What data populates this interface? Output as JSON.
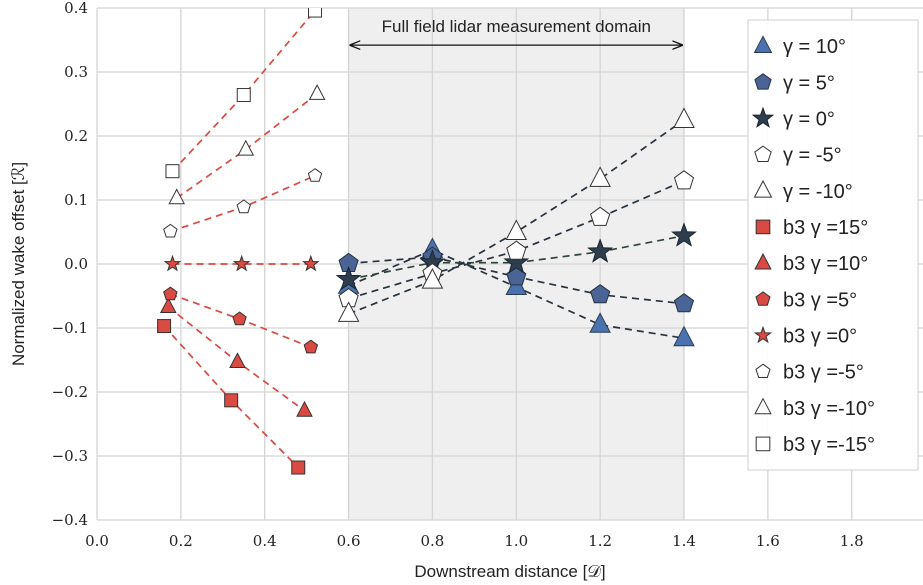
{
  "chart_data": {
    "type": "scatter",
    "xlabel": "Downstream distance [𝒟]",
    "ylabel": "Normalized wake offset [ℛ]",
    "xlim": [
      0.0,
      1.97
    ],
    "ylim": [
      -0.4,
      0.4
    ],
    "x_ticks": [
      {
        "value": 0.0,
        "label": "0.0"
      },
      {
        "value": 0.2,
        "label": "0.2"
      },
      {
        "value": 0.4,
        "label": "0.4"
      },
      {
        "value": 0.6,
        "label": "0.6"
      },
      {
        "value": 0.8,
        "label": "0.8"
      },
      {
        "value": 1.0,
        "label": "1.0"
      },
      {
        "value": 1.2,
        "label": "1.2"
      },
      {
        "value": 1.4,
        "label": "1.4"
      },
      {
        "value": 1.6,
        "label": "1.6"
      },
      {
        "value": 1.8,
        "label": "1.8"
      }
    ],
    "y_ticks": [
      {
        "value": 0.4,
        "label": "0.4"
      },
      {
        "value": 0.3,
        "label": "0.3"
      },
      {
        "value": 0.2,
        "label": "0.2"
      },
      {
        "value": 0.1,
        "label": "0.1"
      },
      {
        "value": 0.0,
        "label": "0.0"
      },
      {
        "value": -0.1,
        "label": "−0.1"
      },
      {
        "value": -0.2,
        "label": "−0.2"
      },
      {
        "value": -0.3,
        "label": "−0.3"
      },
      {
        "value": -0.4,
        "label": "−0.4"
      }
    ],
    "grid": true,
    "legend_position": "right",
    "shaded_region": {
      "x_start": 0.6,
      "x_end": 1.4,
      "color": "#efefef"
    },
    "annotation": {
      "text": "Full field lidar measurement domain",
      "arrow_from": 0.6,
      "arrow_to": 1.4,
      "arrow_y": 0.342,
      "text_y": 0.37
    },
    "series": [
      {
        "name": "γ = 10°",
        "marker": "triangle",
        "fill": "#4a72b0",
        "stroke": "#2c3e50",
        "size": 10,
        "line_color": "#26323f",
        "x": [
          0.6,
          0.8,
          1.0,
          1.2,
          1.4
        ],
        "y": [
          -0.034,
          0.022,
          -0.036,
          -0.095,
          -0.116
        ]
      },
      {
        "name": "γ = 5°",
        "marker": "pentagon",
        "fill": "#4a6496",
        "stroke": "#26323f",
        "size": 10,
        "line_color": "#26323f",
        "x": [
          0.6,
          0.8,
          1.0,
          1.2,
          1.4
        ],
        "y": [
          0.001,
          0.011,
          -0.02,
          -0.048,
          -0.062
        ]
      },
      {
        "name": "γ = 0°",
        "marker": "star",
        "fill": "#2e3e4f",
        "stroke": "#1a242e",
        "size": 11,
        "line_color": "#30453a",
        "x": [
          0.6,
          0.8,
          1.0,
          1.2,
          1.4
        ],
        "y": [
          -0.024,
          0.002,
          0.002,
          0.019,
          0.044
        ]
      },
      {
        "name": "γ = -5°",
        "marker": "pentagon",
        "fill": "#ffffff",
        "stroke": "#333333",
        "size": 10,
        "line_color": "#26323f",
        "x": [
          0.6,
          0.8,
          1.0,
          1.2,
          1.4
        ],
        "y": [
          -0.054,
          -0.015,
          0.02,
          0.073,
          0.13
        ]
      },
      {
        "name": "γ = -10°",
        "marker": "triangle",
        "fill": "#ffffff",
        "stroke": "#333333",
        "size": 10,
        "line_color": "#26323f",
        "x": [
          0.6,
          0.8,
          1.0,
          1.2,
          1.4
        ],
        "y": [
          -0.078,
          -0.026,
          0.05,
          0.133,
          0.225
        ]
      },
      {
        "name": "b3 γ =15°",
        "marker": "square",
        "fill": "#d94a43",
        "stroke": "#333333",
        "size": 6.5,
        "line_color": "#d94a43",
        "x": [
          0.16,
          0.32,
          0.48
        ],
        "y": [
          -0.097,
          -0.213,
          -0.318
        ]
      },
      {
        "name": "b3 γ =10°",
        "marker": "triangle",
        "fill": "#d94a43",
        "stroke": "#333333",
        "size": 7.5,
        "line_color": "#d94a43",
        "x": [
          0.17,
          0.335,
          0.495
        ],
        "y": [
          -0.067,
          -0.153,
          -0.229
        ]
      },
      {
        "name": "b3 γ =5°",
        "marker": "pentagon",
        "fill": "#d94a43",
        "stroke": "#333333",
        "size": 7,
        "line_color": "#d94a43",
        "x": [
          0.175,
          0.34,
          0.51
        ],
        "y": [
          -0.047,
          -0.086,
          -0.13
        ]
      },
      {
        "name": "b3 γ =0°",
        "marker": "star",
        "fill": "#d94a43",
        "stroke": "#333333",
        "size": 7,
        "line_color": "#d94a43",
        "x": [
          0.18,
          0.345,
          0.51
        ],
        "y": [
          0.0,
          0.0,
          0.0
        ]
      },
      {
        "name": "b3 γ =-5°",
        "marker": "pentagon",
        "fill": "#ffffff",
        "stroke": "#333333",
        "size": 7,
        "line_color": "#d94a43",
        "x": [
          0.175,
          0.35,
          0.52
        ],
        "y": [
          0.051,
          0.089,
          0.138
        ]
      },
      {
        "name": "b3 γ =-10°",
        "marker": "triangle",
        "fill": "#ffffff",
        "stroke": "#333333",
        "size": 7.5,
        "line_color": "#d94a43",
        "x": [
          0.19,
          0.355,
          0.525
        ],
        "y": [
          0.103,
          0.179,
          0.266
        ]
      },
      {
        "name": "b3 γ =-15°",
        "marker": "square",
        "fill": "#ffffff",
        "stroke": "#333333",
        "size": 6.5,
        "line_color": "#d94a43",
        "x": [
          0.18,
          0.35,
          0.52
        ],
        "y": [
          0.145,
          0.264,
          0.396
        ]
      }
    ]
  }
}
